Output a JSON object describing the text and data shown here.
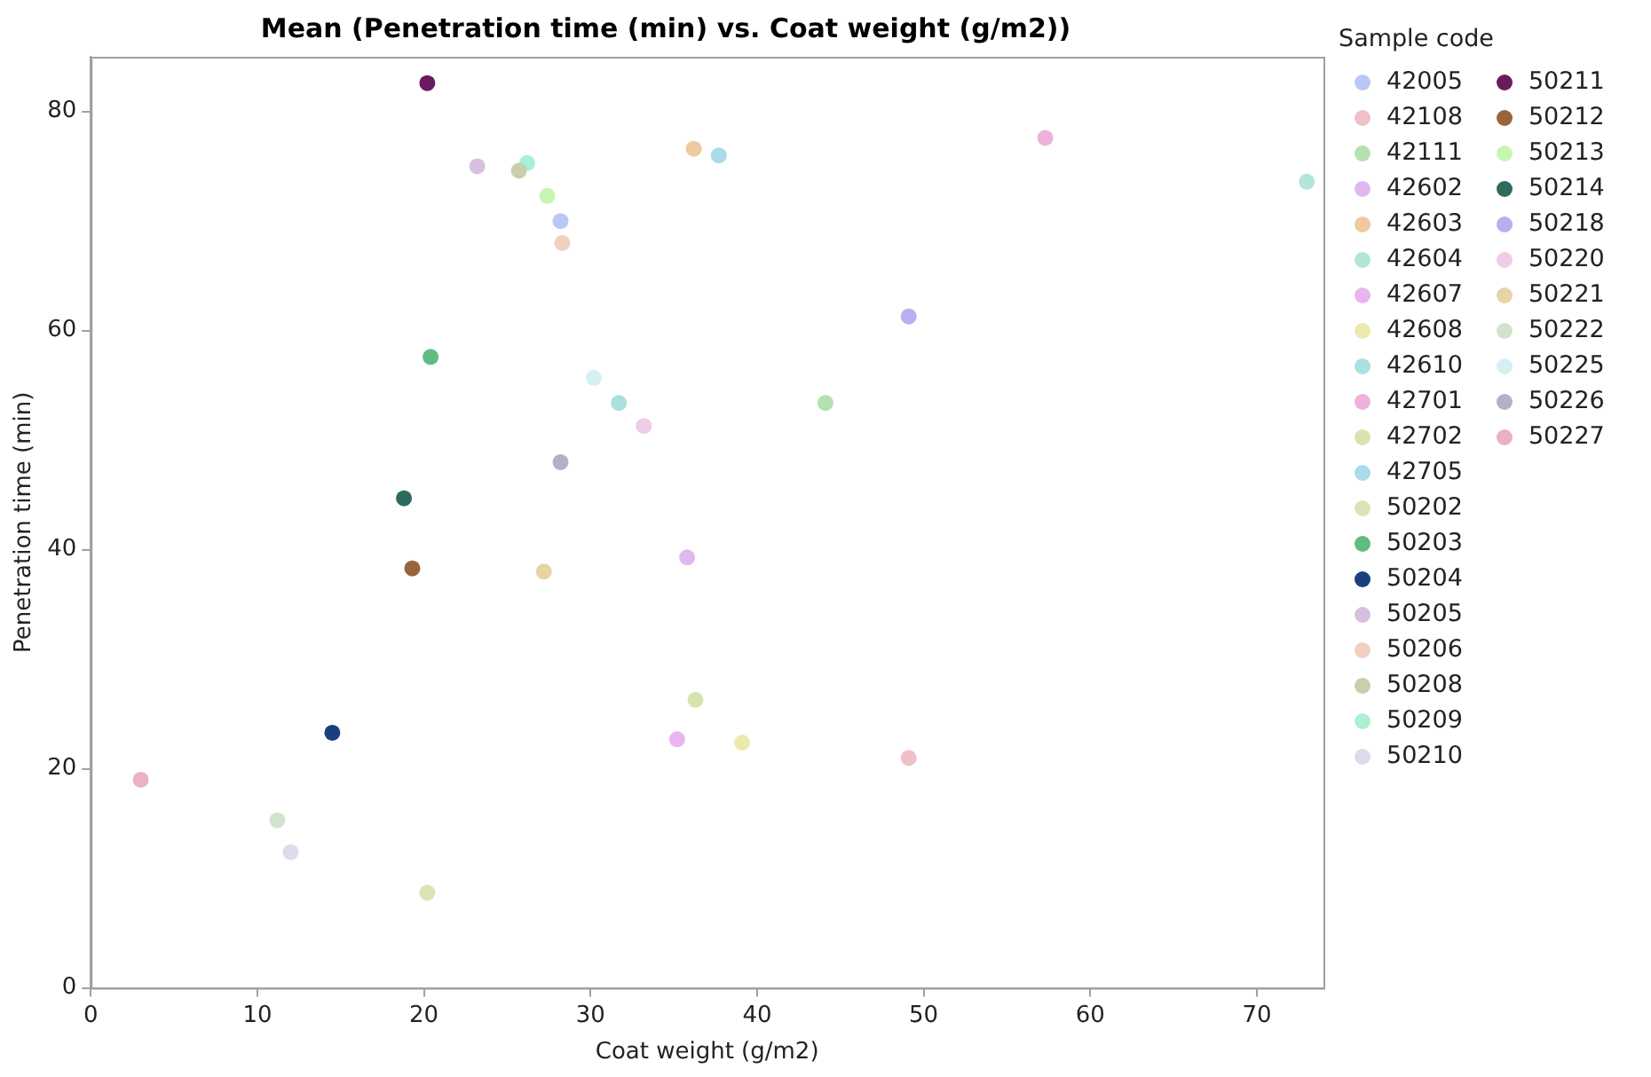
{
  "chart_data": {
    "type": "scatter",
    "title": "Mean (Penetration time (min) vs. Coat weight (g/m2))",
    "xlabel": "Coat weight (g/m2)",
    "ylabel": "Penetration time (min)",
    "legend_title": "Sample code",
    "legend": "right",
    "grid": false,
    "marker": "circle",
    "xlim": [
      0,
      74
    ],
    "xticks": [
      0,
      10,
      20,
      30,
      40,
      50,
      60,
      70
    ],
    "ylim": [
      0,
      85
    ],
    "yticks": [
      0,
      20,
      40,
      60,
      80
    ],
    "series": [
      {
        "name": "42005",
        "color": "#b9c8f5",
        "x": [
          28.2
        ],
        "values": [
          70.0
        ]
      },
      {
        "name": "42108",
        "color": "#f0c0c8",
        "x": [
          49.1
        ],
        "values": [
          21.0
        ]
      },
      {
        "name": "42111",
        "color": "#b5e0b0",
        "x": [
          44.1
        ],
        "values": [
          53.4
        ]
      },
      {
        "name": "42602",
        "color": "#e0b8f0",
        "x": [
          35.8
        ],
        "values": [
          39.3
        ]
      },
      {
        "name": "42603",
        "color": "#efc9a0",
        "x": [
          36.2
        ],
        "values": [
          76.6
        ]
      },
      {
        "name": "42604",
        "color": "#b1e6d8",
        "x": [
          73.0
        ],
        "values": [
          73.6
        ]
      },
      {
        "name": "42607",
        "color": "#eab5ee",
        "x": [
          35.2
        ],
        "values": [
          22.7
        ]
      },
      {
        "name": "42608",
        "color": "#ece9ae",
        "x": [
          39.1
        ],
        "values": [
          22.4
        ]
      },
      {
        "name": "42610",
        "color": "#a9e0e0",
        "x": [
          31.7
        ],
        "values": [
          53.4
        ]
      },
      {
        "name": "42701",
        "color": "#eeb2da",
        "x": [
          57.3
        ],
        "values": [
          77.6
        ]
      },
      {
        "name": "42702",
        "color": "#d8e4b0",
        "x": [
          36.3
        ],
        "values": [
          26.3
        ]
      },
      {
        "name": "42705",
        "color": "#a9dbe8",
        "x": [
          37.7
        ],
        "values": [
          76.0
        ]
      },
      {
        "name": "50202",
        "color": "#dbe4b4",
        "x": [
          20.2
        ],
        "values": [
          8.7
        ]
      },
      {
        "name": "50203",
        "color": "#5fbd83",
        "x": [
          20.4
        ],
        "values": [
          57.6
        ]
      },
      {
        "name": "50204",
        "color": "#1a3f7f",
        "x": [
          14.5
        ],
        "values": [
          23.3
        ]
      },
      {
        "name": "50205",
        "color": "#d9bfdf",
        "x": [
          23.2
        ],
        "values": [
          75.0
        ]
      },
      {
        "name": "50206",
        "color": "#f3cfc0",
        "x": [
          28.3
        ],
        "values": [
          68.0
        ]
      },
      {
        "name": "50208",
        "color": "#c9cfac",
        "x": [
          25.7
        ],
        "values": [
          74.6
        ]
      },
      {
        "name": "50209",
        "color": "#aaf0d1",
        "x": [
          26.2
        ],
        "values": [
          75.3
        ]
      },
      {
        "name": "50210",
        "color": "#dcdcec",
        "x": [
          12.0
        ],
        "values": [
          12.4
        ]
      },
      {
        "name": "50211",
        "color": "#6b1a5e",
        "x": [
          20.2
        ],
        "values": [
          82.6
        ]
      },
      {
        "name": "50212",
        "color": "#9a643a",
        "x": [
          19.3
        ],
        "values": [
          38.3
        ]
      },
      {
        "name": "50213",
        "color": "#c8f5b0",
        "x": [
          27.4
        ],
        "values": [
          72.3
        ]
      },
      {
        "name": "50214",
        "color": "#2e6b5e",
        "x": [
          18.8
        ],
        "values": [
          44.7
        ]
      },
      {
        "name": "50218",
        "color": "#b7b0f0",
        "x": [
          49.1
        ],
        "values": [
          61.3
        ]
      },
      {
        "name": "50220",
        "color": "#f0cbe8",
        "x": [
          33.2
        ],
        "values": [
          51.3
        ]
      },
      {
        "name": "50221",
        "color": "#e8d3a4",
        "x": [
          27.2
        ],
        "values": [
          38.0
        ]
      },
      {
        "name": "50222",
        "color": "#d0e4cc",
        "x": [
          11.2
        ],
        "values": [
          15.3
        ]
      },
      {
        "name": "50225",
        "color": "#d4f0f2",
        "x": [
          30.2
        ],
        "values": [
          55.7
        ]
      },
      {
        "name": "50226",
        "color": "#b5afc8",
        "x": [
          28.2
        ],
        "values": [
          48.0
        ]
      },
      {
        "name": "50227",
        "color": "#ecb0c8",
        "x": [
          3.0
        ],
        "values": [
          19.0
        ]
      }
    ]
  }
}
